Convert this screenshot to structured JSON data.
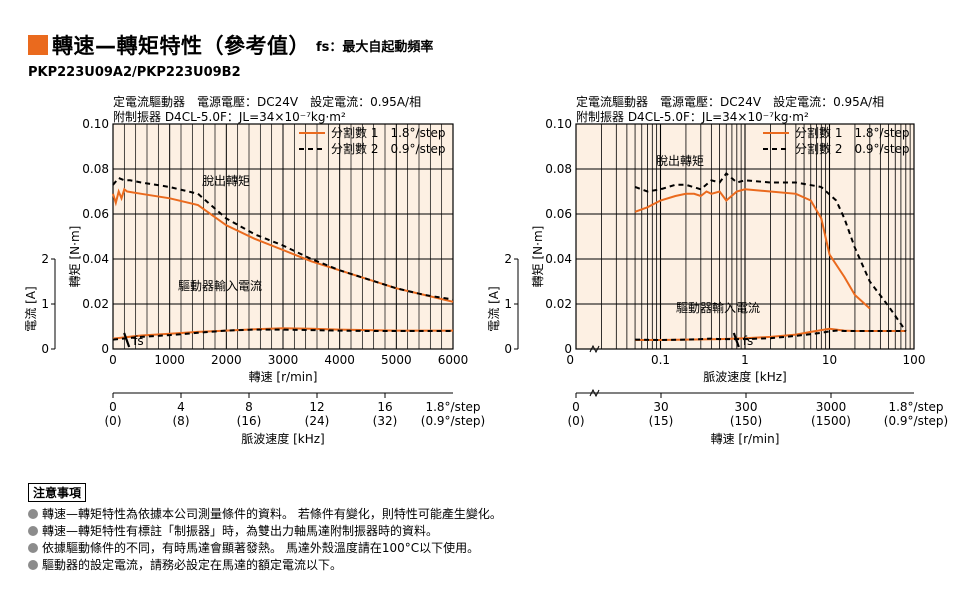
{
  "header": {
    "title": "轉速—轉矩特性（參考值）",
    "subtitle": "fs：最大自起動頻率",
    "model": "PKP223U09A2/PKP223U09B2"
  },
  "notes": {
    "heading": "注意事項",
    "items": [
      "轉速—轉矩特性為依據本公司測量條件的資料。 若條件有變化，則特性可能產生變化。",
      "轉速—轉矩特性有標註「制振器」時，為雙出力軸馬達附制振器時的資料。",
      "依據驅動條件的不同，有時馬達會顯著發熱。 馬達外殼溫度請在100°C以下使用。",
      "驅動器的設定電流，請務必設定在馬達的額定電流以下。"
    ]
  },
  "colors": {
    "accent": "#ea6a1e",
    "plot_bg": "#fdf0e3",
    "grid": "#000000",
    "dashed": "#000000"
  },
  "chart_data": [
    {
      "type": "line",
      "conditions_line1": "定電流驅動器　電源電壓：DC24V　設定電流：0.95A/相",
      "conditions_line2": "附制振器 D4CL-5.0F：JL=34×10⁻⁷kg·m²",
      "xscale": "linear",
      "xlim": [
        0,
        6000
      ],
      "xticks": [
        "0",
        "1000",
        "2000",
        "3000",
        "4000",
        "5000",
        "6000"
      ],
      "xlabel": "轉速 [r/min]",
      "ylim": [
        0,
        0.1
      ],
      "yticks": [
        "0",
        "0.02",
        "0.04",
        "0.06",
        "0.08",
        "0.10"
      ],
      "ylabel": "轉矩 [N·m]",
      "current_axis_label": "電流 [A]",
      "current_ticks": [
        "0",
        "1",
        "2"
      ],
      "legend": [
        "分割數 1　1.8°/step",
        "分割數 2　0.9°/step"
      ],
      "annotations": {
        "pullout": "脫出轉矩",
        "driver_current": "驅動器輸入電流",
        "fs": "fs"
      },
      "secondary_axis": {
        "label": "脈波速度 [kHz]",
        "ticks": [
          "0",
          "4",
          "8",
          "12",
          "16",
          "1.8°/step"
        ],
        "ticks2": [
          "(0)",
          "(8)",
          "(16)",
          "(24)",
          "(32)",
          "(0.9°/step)"
        ]
      },
      "series": [
        {
          "name": "分割數 1　1.8°/step",
          "kind": "torque",
          "x": [
            0,
            50,
            100,
            150,
            200,
            250,
            500,
            1000,
            1500,
            2000,
            2500,
            3000,
            3500,
            4000,
            4500,
            5000,
            5500,
            6000
          ],
          "y": [
            0.069,
            0.065,
            0.07,
            0.067,
            0.071,
            0.07,
            0.069,
            0.067,
            0.064,
            0.055,
            0.049,
            0.044,
            0.039,
            0.035,
            0.031,
            0.027,
            0.024,
            0.021
          ]
        },
        {
          "name": "分割數 2　0.9°/step",
          "kind": "torque",
          "x": [
            0,
            100,
            200,
            300,
            500,
            1000,
            1500,
            2000,
            2500,
            3000,
            3500,
            4000,
            4500,
            5000,
            5500,
            6000
          ],
          "y": [
            0.073,
            0.076,
            0.075,
            0.075,
            0.074,
            0.072,
            0.069,
            0.058,
            0.051,
            0.046,
            0.04,
            0.035,
            0.031,
            0.027,
            0.024,
            0.022
          ]
        },
        {
          "name": "分割數 1　1.8°/step",
          "kind": "current",
          "x": [
            0,
            500,
            1000,
            1500,
            2000,
            2500,
            3000,
            3500,
            4000,
            4500,
            5000,
            5500,
            6000
          ],
          "y": [
            0.23,
            0.3,
            0.34,
            0.38,
            0.41,
            0.44,
            0.46,
            0.45,
            0.43,
            0.42,
            0.41,
            0.41,
            0.41
          ]
        },
        {
          "name": "分割數 2　0.9°/step",
          "kind": "current",
          "x": [
            0,
            500,
            1000,
            1500,
            2000,
            2500,
            3000,
            3500,
            4000,
            4500,
            5000,
            5500,
            6000
          ],
          "y": [
            0.21,
            0.27,
            0.31,
            0.36,
            0.41,
            0.43,
            0.43,
            0.42,
            0.41,
            0.4,
            0.4,
            0.4,
            0.4
          ]
        }
      ],
      "fs_x": 250
    },
    {
      "type": "line",
      "conditions_line1": "定電流驅動器　電源電壓：DC24V　設定電流：0.95A/相",
      "conditions_line2": "附制振器 D4CL-5.0F：JL=34×10⁻⁷kg·m²",
      "xscale": "log",
      "xlim": [
        0.01,
        100
      ],
      "xticks": [
        "0",
        "0.1",
        "1",
        "10",
        "100"
      ],
      "xlabel": "脈波速度 [kHz]",
      "ylim": [
        0,
        0.1
      ],
      "yticks": [
        "0",
        "0.02",
        "0.04",
        "0.06",
        "0.08",
        "0.10"
      ],
      "ylabel": "轉矩 [N·m]",
      "current_axis_label": "電流 [A]",
      "current_ticks": [
        "0",
        "1",
        "2"
      ],
      "legend": [
        "分割數 1　1.8°/step",
        "分割數 2　0.9°/step"
      ],
      "annotations": {
        "pullout": "脫出轉矩",
        "driver_current": "驅動器輸入電流",
        "fs": "fs"
      },
      "secondary_axis": {
        "label": "轉速 [r/min]",
        "ticks": [
          "0",
          "30",
          "300",
          "3000",
          "1.8°/step"
        ],
        "ticks2": [
          "(0)",
          "(15)",
          "(150)",
          "(1500)",
          "(0.9°/step)"
        ]
      },
      "series": [
        {
          "name": "分割數 1　1.8°/step",
          "kind": "torque",
          "x": [
            0.05,
            0.07,
            0.1,
            0.15,
            0.2,
            0.25,
            0.3,
            0.35,
            0.4,
            0.5,
            0.6,
            0.8,
            1,
            2,
            4,
            6,
            8,
            10,
            15,
            20,
            30
          ],
          "y": [
            0.061,
            0.063,
            0.066,
            0.068,
            0.069,
            0.069,
            0.068,
            0.07,
            0.069,
            0.07,
            0.066,
            0.07,
            0.071,
            0.07,
            0.069,
            0.066,
            0.058,
            0.042,
            0.032,
            0.024,
            0.018
          ]
        },
        {
          "name": "分割數 2　0.9°/step",
          "kind": "torque",
          "x": [
            0.05,
            0.07,
            0.1,
            0.15,
            0.2,
            0.3,
            0.4,
            0.5,
            0.6,
            0.8,
            1,
            2,
            4,
            8,
            12,
            15,
            20,
            30,
            50,
            80
          ],
          "y": [
            0.072,
            0.07,
            0.071,
            0.073,
            0.073,
            0.071,
            0.075,
            0.074,
            0.078,
            0.074,
            0.075,
            0.074,
            0.074,
            0.072,
            0.066,
            0.058,
            0.045,
            0.03,
            0.019,
            0.008
          ]
        },
        {
          "name": "分割數 1　1.8°/step",
          "kind": "current",
          "x": [
            0.05,
            0.1,
            0.2,
            0.5,
            1,
            2,
            4,
            6,
            8,
            10,
            12,
            15,
            20,
            30,
            50,
            80
          ],
          "y": [
            0.2,
            0.2,
            0.21,
            0.22,
            0.24,
            0.27,
            0.32,
            0.38,
            0.42,
            0.45,
            0.43,
            0.41,
            0.4,
            0.4,
            0.4,
            0.4
          ]
        },
        {
          "name": "分割數 2　0.9°/step",
          "kind": "current",
          "x": [
            0.05,
            0.1,
            0.2,
            0.3,
            0.4,
            0.5,
            1,
            2,
            4,
            6,
            8,
            10,
            12,
            15,
            20,
            30,
            50,
            80
          ],
          "y": [
            0.21,
            0.2,
            0.21,
            0.22,
            0.23,
            0.22,
            0.22,
            0.24,
            0.29,
            0.33,
            0.36,
            0.39,
            0.41,
            0.4,
            0.4,
            0.4,
            0.4,
            0.4
          ]
        }
      ],
      "fs_x": 0.8
    }
  ]
}
